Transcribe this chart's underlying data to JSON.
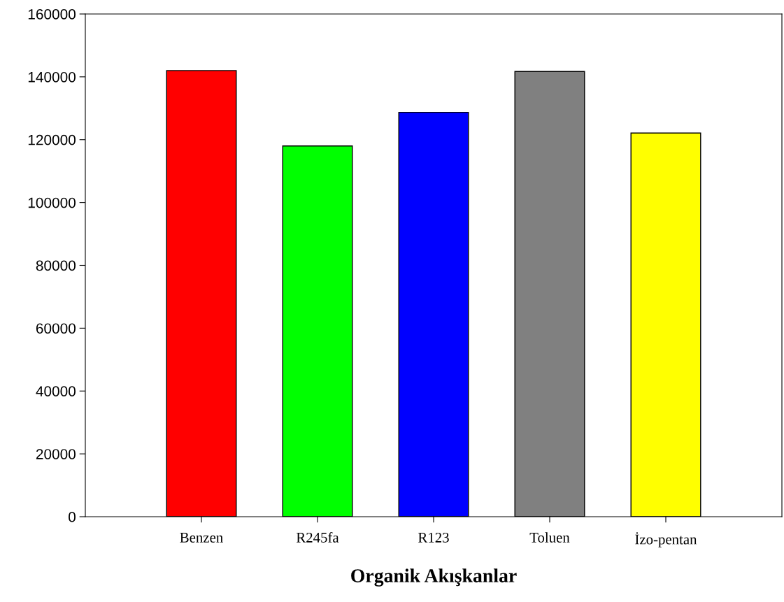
{
  "chart_data": {
    "type": "bar",
    "xlabel": "Organik Akışkanlar",
    "categories": [
      "Benzen",
      "R245fa",
      "R123",
      "Toluen",
      "İzo-pentan"
    ],
    "values": [
      142000,
      118000,
      128700,
      141700,
      122100
    ],
    "colors": [
      "#ff0000",
      "#00ff00",
      "#0000ff",
      "#808080",
      "#ffff00"
    ],
    "ylim": [
      0,
      160000
    ],
    "yticks": [
      0,
      20000,
      40000,
      60000,
      80000,
      100000,
      120000,
      140000,
      160000
    ],
    "grid": false
  }
}
